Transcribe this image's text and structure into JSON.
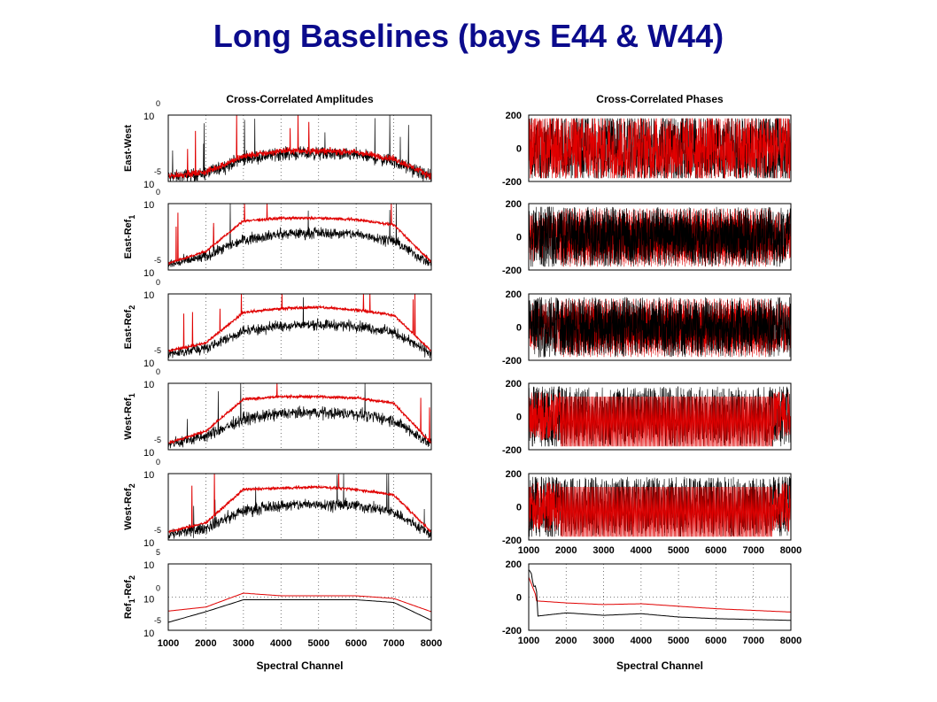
{
  "slide_title": "Long Baselines (bays E44 & W44)",
  "colors": {
    "title": "#0b0b8c",
    "series_red": "#e00000",
    "series_black": "#000000",
    "grid": "#555555"
  },
  "chart_data": [
    {
      "id": "amplitudes",
      "type": "line",
      "title": "Cross-Correlated Amplitudes",
      "xlabel": "Spectral Channel",
      "x_ticks": [
        "1000",
        "2000",
        "3000",
        "4000",
        "5000",
        "6000",
        "7000",
        "8000"
      ],
      "xlim": [
        1000,
        8000
      ],
      "y_scale": "log",
      "grid": true,
      "series_colors": [
        "#e00000",
        "#000000"
      ],
      "panels": [
        {
          "ylabel_main": "East-West",
          "ylabel_sub": "",
          "top_exp": "0",
          "bottom_exp": "-5",
          "ymax_label": "10",
          "ymin_label": "10",
          "ylim_exp": [
            -5,
            0
          ],
          "series": [
            {
              "profile_exp": [
                -4.6,
                -4.3,
                -3.1,
                -2.7,
                -2.7,
                -2.8,
                -3.3,
                -4.6
              ],
              "noise": 0.3
            },
            {
              "profile_exp": [
                -4.7,
                -4.4,
                -3.3,
                -2.9,
                -2.9,
                -3.0,
                -3.5,
                -4.7
              ],
              "noise": 0.6
            }
          ]
        },
        {
          "ylabel_main": "East-Ref",
          "ylabel_sub": "1",
          "top_exp": "0",
          "bottom_exp": "-5",
          "ymax_label": "10",
          "ymin_label": "10",
          "ylim_exp": [
            -5,
            0
          ],
          "series": [
            {
              "profile_exp": [
                -4.5,
                -3.6,
                -1.3,
                -1.1,
                -1.1,
                -1.2,
                -1.6,
                -4.4
              ],
              "noise": 0.12
            },
            {
              "profile_exp": [
                -4.6,
                -4.0,
                -2.7,
                -2.3,
                -2.2,
                -2.3,
                -2.8,
                -4.6
              ],
              "noise": 0.5
            }
          ]
        },
        {
          "ylabel_main": "East-Ref",
          "ylabel_sub": "2",
          "top_exp": "0",
          "bottom_exp": "-5",
          "ymax_label": "10",
          "ymin_label": "10",
          "ylim_exp": [
            -5,
            0
          ],
          "series": [
            {
              "profile_exp": [
                -4.3,
                -3.7,
                -1.4,
                -1.1,
                -1.0,
                -1.2,
                -1.6,
                -4.3
              ],
              "noise": 0.12
            },
            {
              "profile_exp": [
                -4.5,
                -4.1,
                -2.8,
                -2.4,
                -2.3,
                -2.4,
                -2.9,
                -4.5
              ],
              "noise": 0.5
            }
          ]
        },
        {
          "ylabel_main": "West-Ref",
          "ylabel_sub": "1",
          "top_exp": "0",
          "bottom_exp": "-5",
          "ymax_label": "10",
          "ymin_label": "10",
          "ylim_exp": [
            -5,
            0
          ],
          "series": [
            {
              "profile_exp": [
                -4.5,
                -3.6,
                -1.2,
                -1.0,
                -1.0,
                -1.1,
                -1.5,
                -4.5
              ],
              "noise": 0.12
            },
            {
              "profile_exp": [
                -4.6,
                -4.0,
                -2.7,
                -2.3,
                -2.2,
                -2.3,
                -2.8,
                -4.6
              ],
              "noise": 0.55
            }
          ]
        },
        {
          "ylabel_main": "West-Ref",
          "ylabel_sub": "2",
          "top_exp": "0",
          "bottom_exp": "-5",
          "ymax_label": "10",
          "ymin_label": "10",
          "ylim_exp": [
            -5,
            0
          ],
          "series": [
            {
              "profile_exp": [
                -4.4,
                -3.7,
                -1.2,
                -1.1,
                -1.0,
                -1.2,
                -1.6,
                -4.4
              ],
              "noise": 0.12
            },
            {
              "profile_exp": [
                -4.6,
                -4.1,
                -2.8,
                -2.4,
                -2.3,
                -2.4,
                -2.9,
                -4.6
              ],
              "noise": 0.55
            }
          ]
        },
        {
          "ylabel_main": "Ref",
          "ylabel_sub": "1",
          "ylabel_main2": "-Ref",
          "ylabel_sub2": "2",
          "top_exp": "5",
          "mid_label": "0",
          "bottom_exp": "-5",
          "ymax_label": "10",
          "ymid_label": "10",
          "ymin_label": "10",
          "ylim_exp": [
            -5,
            5
          ],
          "series": [
            {
              "profile_exp": [
                -2.1,
                -1.5,
                0.6,
                0.2,
                0.2,
                0.2,
                -0.2,
                -2.2
              ],
              "noise": 0.0
            },
            {
              "profile_exp": [
                -3.8,
                -2.2,
                -0.4,
                -0.4,
                -0.4,
                -0.4,
                -0.8,
                -3.5
              ],
              "noise": 0.0
            }
          ]
        }
      ]
    },
    {
      "id": "phases",
      "type": "line",
      "title": "Cross-Correlated Phases",
      "xlabel": "Spectral Channel",
      "x_ticks": [
        "1000",
        "2000",
        "3000",
        "4000",
        "5000",
        "6000",
        "7000",
        "8000"
      ],
      "xlim": [
        1000,
        8000
      ],
      "ylim": [
        -200,
        200
      ],
      "y_ticks": [
        "200",
        "0",
        "-200"
      ],
      "series_colors": [
        "#e00000",
        "#000000"
      ],
      "panels": [
        {
          "grid": false,
          "show_x_ticks": false,
          "style": "noise"
        },
        {
          "grid": false,
          "show_x_ticks": false,
          "style": "wrap_dense"
        },
        {
          "grid": false,
          "show_x_ticks": false,
          "style": "wrap_dense"
        },
        {
          "grid": false,
          "show_x_ticks": false,
          "style": "wrap"
        },
        {
          "grid": false,
          "show_x_ticks": true,
          "style": "wrap"
        },
        {
          "grid": true,
          "show_x_ticks": true,
          "style": "smooth",
          "series": [
            {
              "profile": [
                -20,
                -35,
                -45,
                -40,
                -55,
                -70,
                -80,
                -90
              ]
            },
            {
              "profile": [
                -120,
                -95,
                -110,
                -100,
                -120,
                -130,
                -135,
                -140
              ]
            }
          ]
        }
      ]
    }
  ]
}
